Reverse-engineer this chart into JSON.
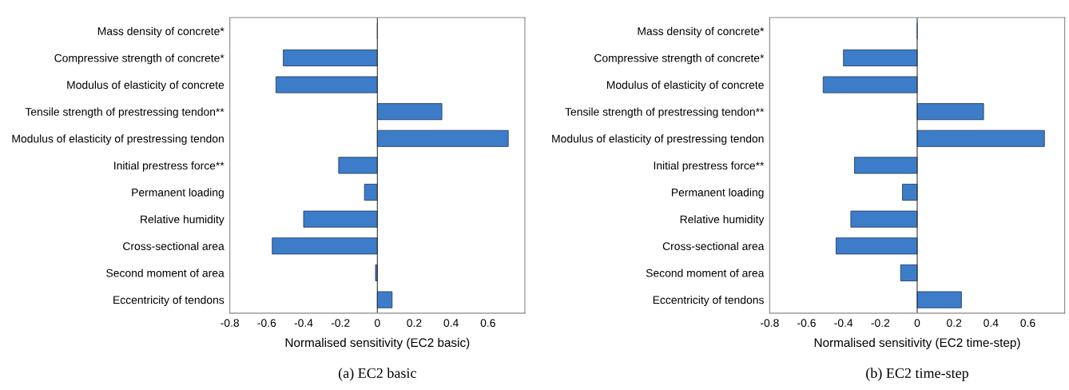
{
  "chart_data": [
    {
      "type": "bar",
      "orientation": "horizontal",
      "xlabel": "Normalised sensitivity (EC2 basic)",
      "annotations": [
        "(a) EC2 basic"
      ],
      "categories": [
        "Mass density of concrete*",
        "Compressive strength of concrete*",
        "Modulus of elasticity of concrete",
        "Tensile strength of prestressing tendon**",
        "Modulus of elasticity of prestressing tendon",
        "Initial prestress force**",
        "Permanent loading",
        "Relative humidity",
        "Cross-sectional area",
        "Second moment of area",
        "Eccentricity of tendons"
      ],
      "values": [
        0,
        -0.51,
        -0.55,
        0.35,
        0.71,
        -0.21,
        -0.07,
        -0.4,
        -0.57,
        -0.01,
        0.08
      ],
      "color": "#3d7cc9",
      "xlim": [
        -0.8,
        0.8
      ],
      "xticks": [
        -0.8,
        -0.6,
        -0.4,
        -0.2,
        0,
        0.2,
        0.4,
        0.6
      ],
      "grid": false,
      "ref_lines": [
        {
          "axis": "x",
          "value": 0,
          "color": "#333333"
        }
      ]
    },
    {
      "type": "bar",
      "orientation": "horizontal",
      "xlabel": "Normalised sensitivity (EC2 time-step)",
      "annotations": [
        "(b) EC2 time-step"
      ],
      "categories": [
        "Mass density of concrete*",
        "Compressive strength of concrete*",
        "Modulus of elasticity of concrete",
        "Tensile strength of prestressing tendon**",
        "Modulus of elasticity of prestressing tendon",
        "Initial prestress force**",
        "Permanent loading",
        "Relative humidity",
        "Cross-sectional area",
        "Second moment of area",
        "Eccentricity of tendons"
      ],
      "values": [
        0,
        -0.4,
        -0.51,
        0.36,
        0.69,
        -0.34,
        -0.08,
        -0.36,
        -0.44,
        -0.09,
        0.24
      ],
      "color": "#3d7cc9",
      "xlim": [
        -0.8,
        0.8
      ],
      "xticks": [
        -0.8,
        -0.6,
        -0.4,
        -0.2,
        0,
        0.2,
        0.4,
        0.6
      ],
      "grid": false,
      "ref_lines": [
        {
          "axis": "x",
          "value": 0,
          "color": "#333333"
        }
      ]
    }
  ]
}
